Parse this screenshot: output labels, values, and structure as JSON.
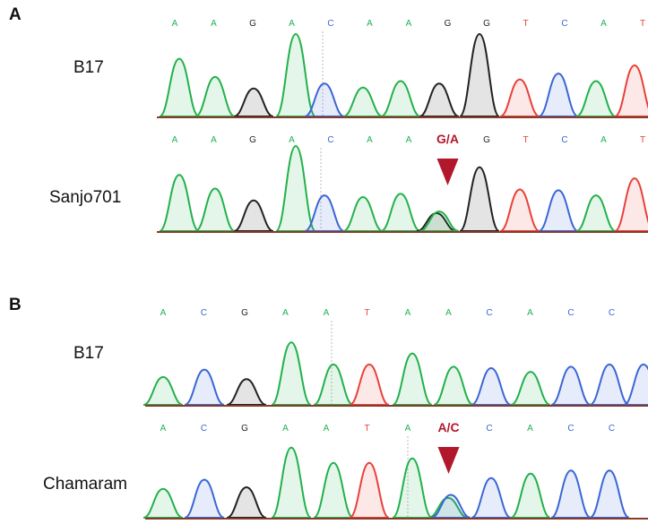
{
  "panels": [
    {
      "letter": "A",
      "tracks": [
        {
          "label": "B17",
          "bases": [
            "A",
            "A",
            "G",
            "A",
            "C",
            "A",
            "A",
            "G",
            "G",
            "T",
            "C",
            "A",
            "T"
          ],
          "variant_label": "",
          "peaks": [
            {
              "base": "A",
              "h": 0.7
            },
            {
              "base": "A",
              "h": 0.48
            },
            {
              "base": "G",
              "h": 0.34
            },
            {
              "base": "A",
              "h": 1.0
            },
            {
              "base": "C",
              "h": 0.4
            },
            {
              "base": "A",
              "h": 0.35
            },
            {
              "base": "A",
              "h": 0.43
            },
            {
              "base": "G",
              "h": 0.4
            },
            {
              "base": "G",
              "h": 1.0
            },
            {
              "base": "T",
              "h": 0.45
            },
            {
              "base": "C",
              "h": 0.52
            },
            {
              "base": "A",
              "h": 0.43
            },
            {
              "base": "T",
              "h": 0.62
            }
          ]
        },
        {
          "label": "Sanjo701",
          "bases": [
            "A",
            "A",
            "G",
            "A",
            "C",
            "A",
            "A",
            "G/A",
            "G",
            "T",
            "C",
            "A",
            "T"
          ],
          "variant_label": "G/A",
          "peaks": [
            {
              "base": "A",
              "h": 0.66
            },
            {
              "base": "A",
              "h": 0.5
            },
            {
              "base": "G",
              "h": 0.36
            },
            {
              "base": "A",
              "h": 1.0
            },
            {
              "base": "C",
              "h": 0.42
            },
            {
              "base": "A",
              "h": 0.4
            },
            {
              "base": "A",
              "h": 0.44
            },
            {
              "base": "G",
              "h": 0.21
            },
            {
              "base": "A",
              "h": 0.23
            },
            {
              "base": "G",
              "h": 0.75
            },
            {
              "base": "T",
              "h": 0.49
            },
            {
              "base": "C",
              "h": 0.48
            },
            {
              "base": "A",
              "h": 0.42
            },
            {
              "base": "T",
              "h": 0.62
            }
          ]
        }
      ]
    },
    {
      "letter": "B",
      "tracks": [
        {
          "label": "B17",
          "bases": [
            "A",
            "C",
            "G",
            "A",
            "A",
            "T",
            "A",
            "A",
            "C",
            "A",
            "C",
            "C",
            "C"
          ],
          "variant_label": "",
          "peaks": [
            {
              "base": "A",
              "h": 0.38
            },
            {
              "base": "C",
              "h": 0.48
            },
            {
              "base": "G",
              "h": 0.35
            },
            {
              "base": "A",
              "h": 0.85
            },
            {
              "base": "A",
              "h": 0.55
            },
            {
              "base": "T",
              "h": 0.55
            },
            {
              "base": "A",
              "h": 0.7
            },
            {
              "base": "A",
              "h": 0.52
            },
            {
              "base": "C",
              "h": 0.5
            },
            {
              "base": "A",
              "h": 0.45
            },
            {
              "base": "C",
              "h": 0.52
            },
            {
              "base": "C",
              "h": 0.55
            },
            {
              "base": "C",
              "h": 0.55
            }
          ]
        },
        {
          "label": "Chamaram",
          "bases": [
            "A",
            "C",
            "G",
            "A",
            "A",
            "T",
            "A",
            "A/C",
            "C",
            "A",
            "C",
            "C",
            "C"
          ],
          "variant_label": "A/C",
          "peaks": [
            {
              "base": "A",
              "h": 0.38
            },
            {
              "base": "C",
              "h": 0.5
            },
            {
              "base": "G",
              "h": 0.4
            },
            {
              "base": "A",
              "h": 0.92
            },
            {
              "base": "A",
              "h": 0.72
            },
            {
              "base": "T",
              "h": 0.72
            },
            {
              "base": "A",
              "h": 0.78
            },
            {
              "base": "A",
              "h": 0.26
            },
            {
              "base": "C",
              "h": 0.3
            },
            {
              "base": "C",
              "h": 0.52
            },
            {
              "base": "A",
              "h": 0.58
            },
            {
              "base": "C",
              "h": 0.62
            },
            {
              "base": "C",
              "h": 0.62
            }
          ]
        }
      ]
    }
  ],
  "colors": {
    "A": "#22b14c",
    "C": "#3b66d6",
    "G": "#222222",
    "T": "#e8413a",
    "variant": "#b2182b"
  },
  "icons": {
    "mutation_marker": "red-down-triangle-icon"
  }
}
